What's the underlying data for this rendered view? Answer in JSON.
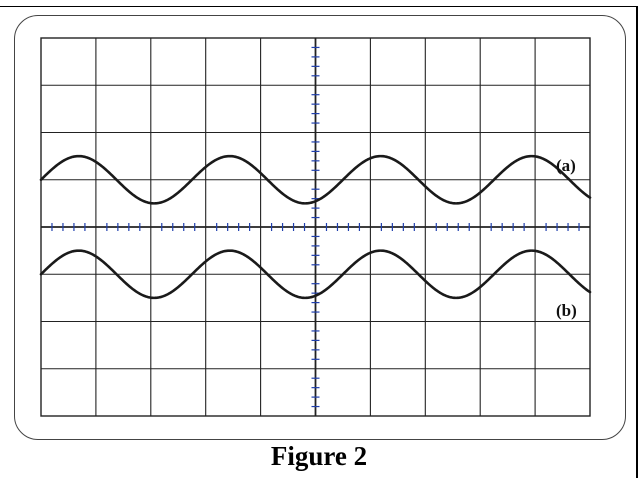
{
  "figure": {
    "caption": "Figure 2"
  },
  "screen": {
    "grid_divisions_x": 10,
    "grid_divisions_y": 8,
    "minor_ticks_per_division": 5,
    "grid_color": "#222222",
    "axis_tick_color": "#1f3fae",
    "trace_color": "#1a1a1a"
  },
  "traces": [
    {
      "label": "(a)",
      "center_div": 1.0,
      "amplitude_div": 0.5,
      "period_div": 2.75,
      "phase_at_left": "center-rising"
    },
    {
      "label": "(b)",
      "center_div": -1.0,
      "amplitude_div": 0.5,
      "period_div": 2.75,
      "phase_at_left": "center-rising"
    }
  ]
}
